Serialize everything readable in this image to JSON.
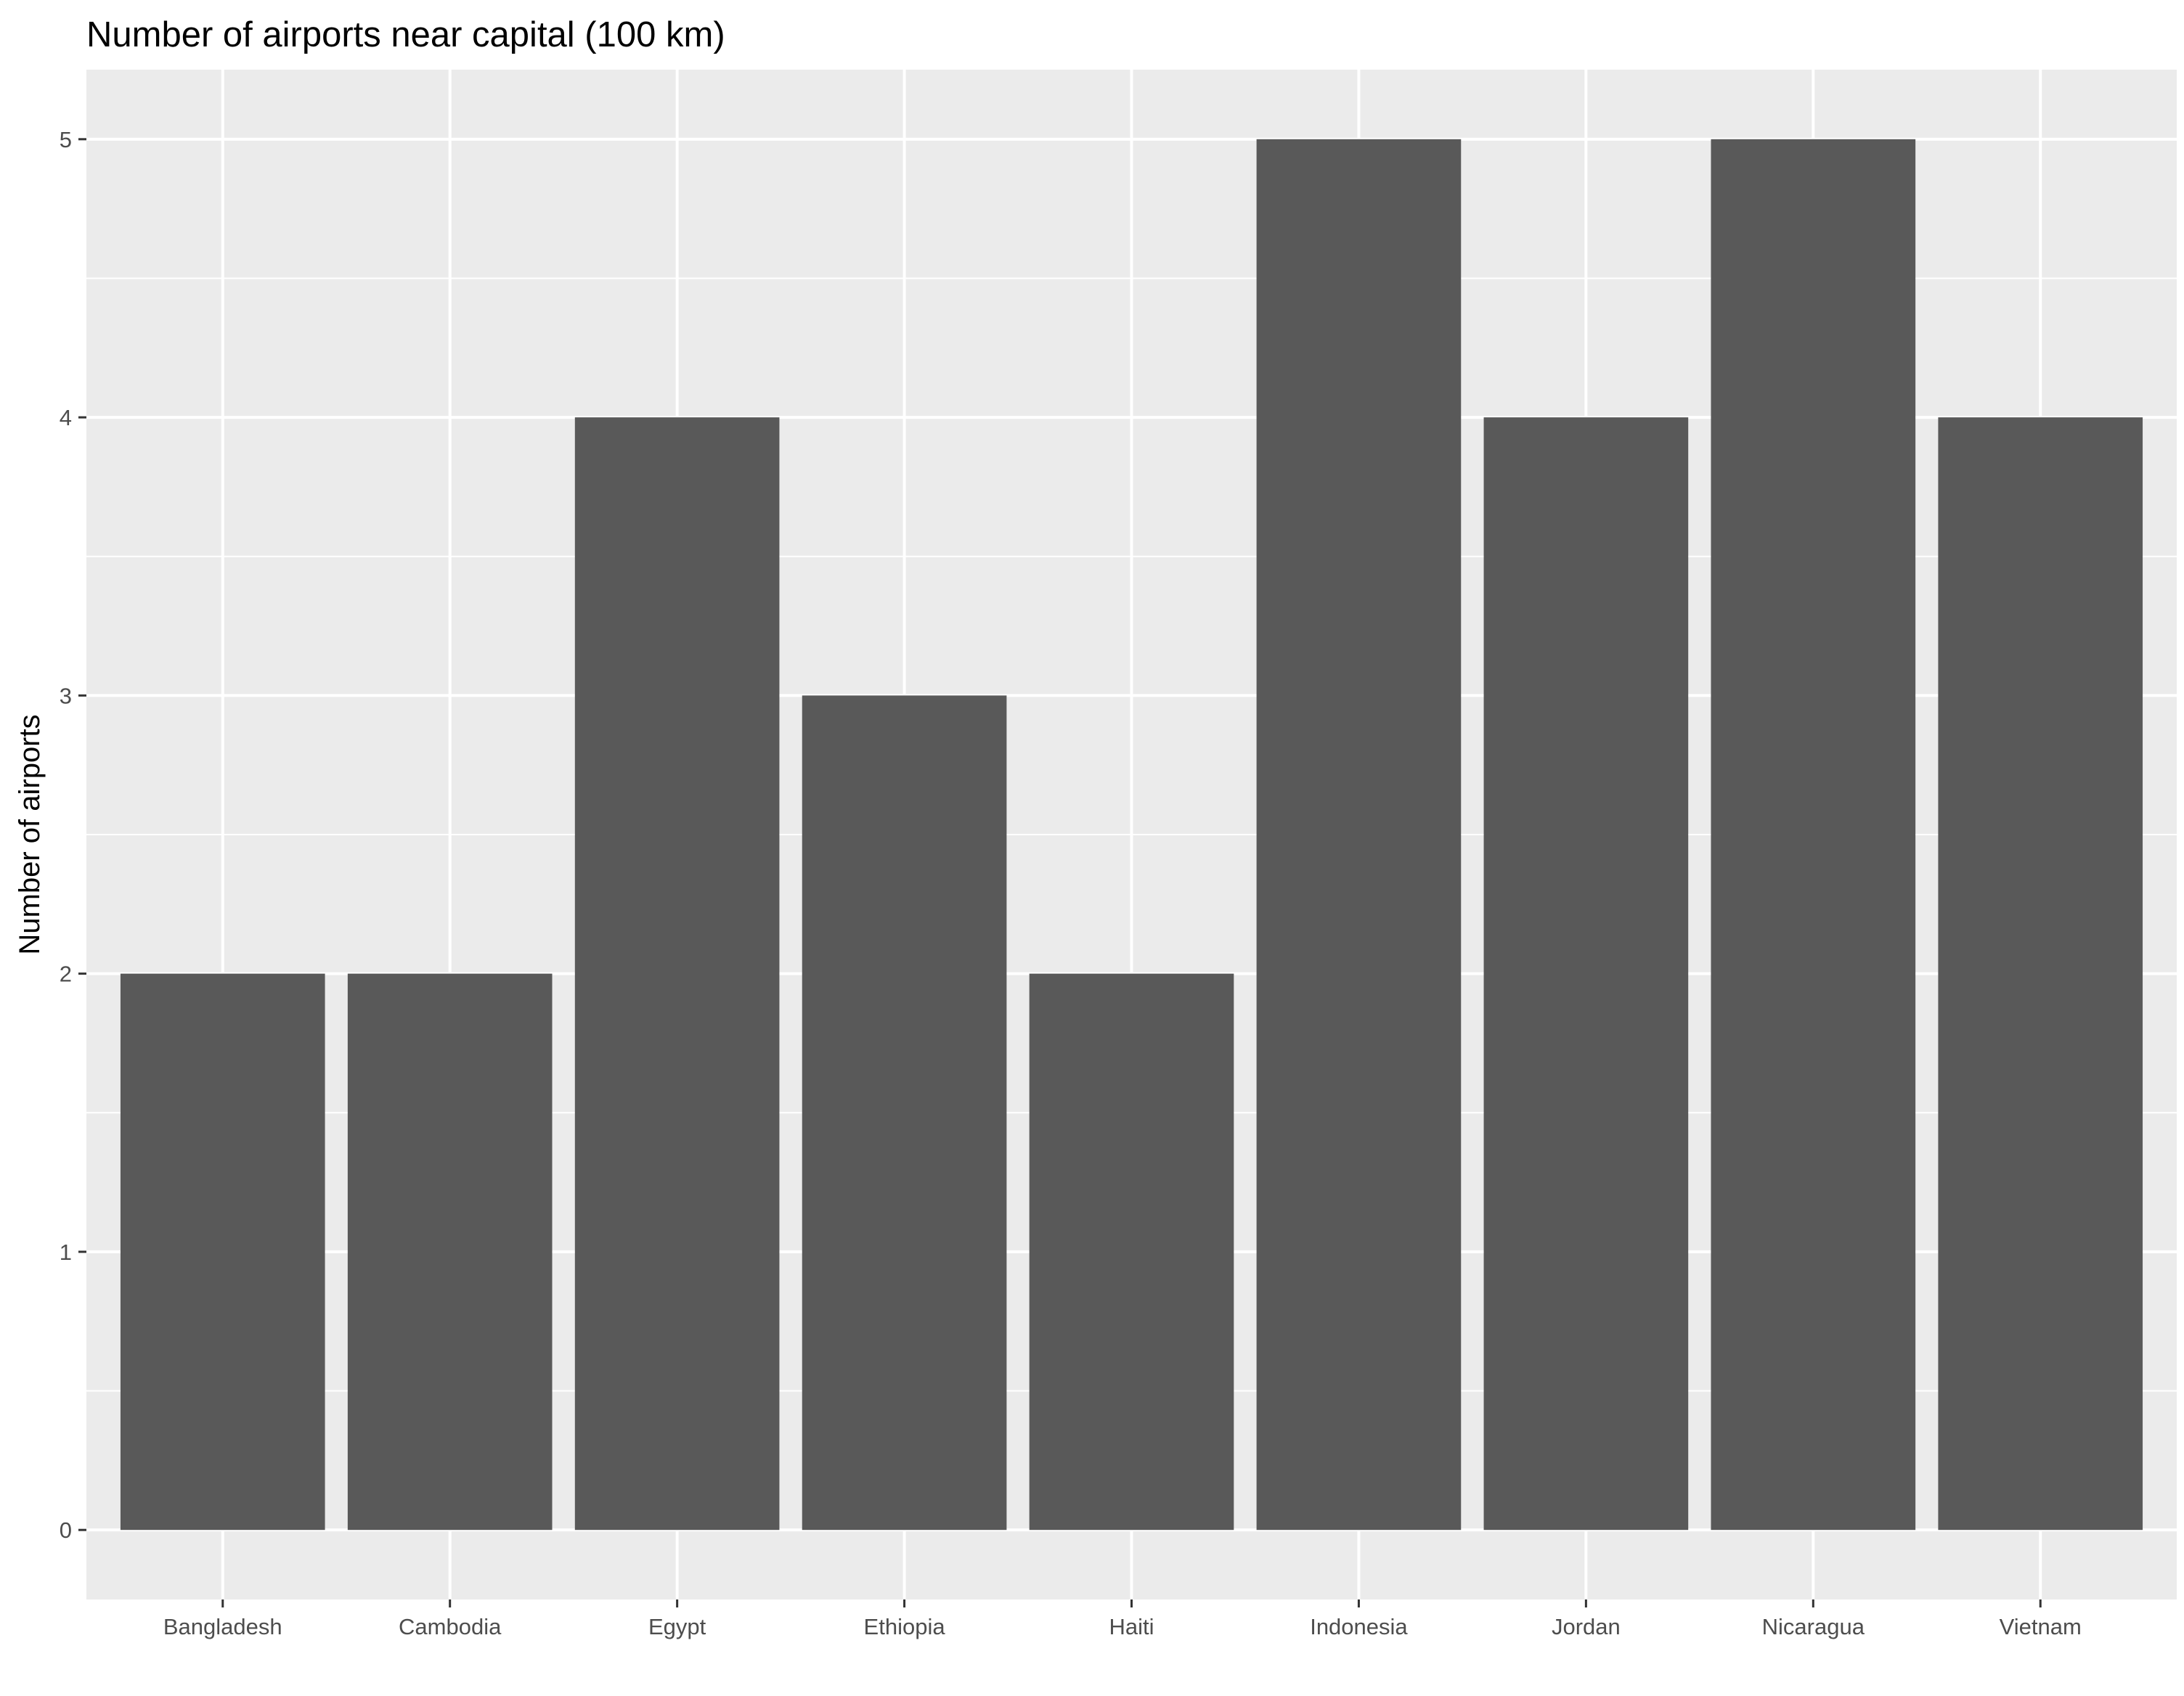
{
  "chart_data": {
    "type": "bar",
    "title": "Number of airports near capital (100 km)",
    "xlabel": "",
    "ylabel": "Number of airports",
    "categories": [
      "Bangladesh",
      "Cambodia",
      "Egypt",
      "Ethiopia",
      "Haiti",
      "Indonesia",
      "Jordan",
      "Nicaragua",
      "Vietnam"
    ],
    "values": [
      2,
      2,
      4,
      3,
      2,
      5,
      4,
      5,
      4
    ],
    "ylim": [
      -0.25,
      5.25
    ],
    "yticks": [
      0,
      1,
      2,
      3,
      4,
      5
    ],
    "grid": true,
    "legend": "none",
    "colors": {
      "bar": "#595959",
      "panel": "#ebebeb",
      "grid": "#ffffff",
      "tick": "#4d4d4d"
    }
  }
}
